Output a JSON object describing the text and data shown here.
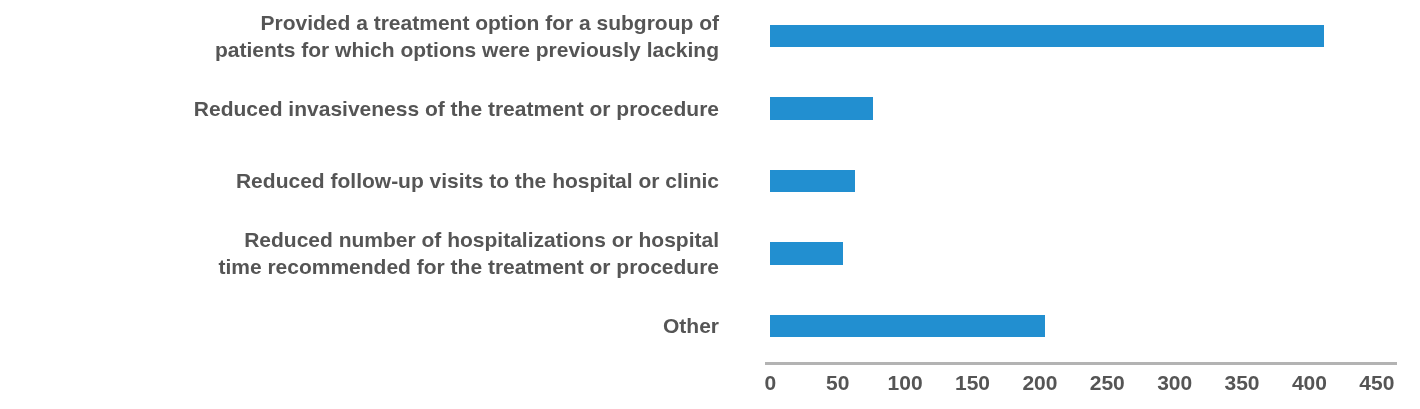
{
  "chart_data": {
    "type": "bar",
    "orientation": "horizontal",
    "categories": [
      "Provided a treatment option for a subgroup of patients for which options were previously lacking",
      "Reduced invasiveness of the treatment or procedure",
      "Reduced follow-up visits to the hospital or clinic",
      "Reduced number of hospitalizations or hospital time recommended for the treatment or procedure",
      "Other"
    ],
    "values": [
      411,
      76,
      63,
      54,
      204
    ],
    "color": "#228fd0",
    "xlim": [
      -4,
      465
    ],
    "xticks": [
      0,
      50,
      100,
      150,
      200,
      250,
      300,
      350,
      400,
      450
    ],
    "grid": false
  }
}
